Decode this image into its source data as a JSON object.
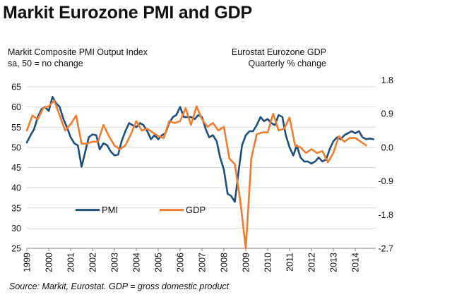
{
  "chart_data": {
    "type": "line",
    "title": "Markit Eurozone PMI and GDP",
    "left_axis_label": [
      "Markit Composite PMI Output Index",
      "sa, 50 = no change"
    ],
    "right_axis_label": [
      "Eurostat Eurozone GDP",
      "Quarterly % change"
    ],
    "source": "Source: Markit, Eurostat. GDP = gross domestic product",
    "left_ylim": [
      25,
      65
    ],
    "left_yticks": [
      "65",
      "60",
      "55",
      "50",
      "45",
      "40",
      "35",
      "30",
      "25"
    ],
    "right_ylim": [
      -2.7,
      1.8
    ],
    "right_yticks": [
      "1.8",
      "0.9",
      "0.0",
      "-0.9",
      "-1.8",
      "-2.7"
    ],
    "xlim": [
      1999,
      2015.0
    ],
    "xticks": [
      "1999",
      "2000",
      "2001",
      "2002",
      "2003",
      "2004",
      "2005",
      "2006",
      "2007",
      "2008",
      "2009",
      "2010",
      "2011",
      "2012",
      "2013",
      "2014"
    ],
    "grid": true,
    "legend": [
      {
        "name": "PMI",
        "color": "#1f4e79"
      },
      {
        "name": "GDP",
        "color": "#ed7d31"
      }
    ],
    "legend_position": "lower-left-center",
    "series": [
      {
        "name": "PMI",
        "axis": "left",
        "color": "#1f4e79",
        "x": [
          1999.0,
          1999.17,
          1999.33,
          1999.5,
          1999.67,
          1999.83,
          2000.0,
          2000.17,
          2000.33,
          2000.5,
          2000.67,
          2000.83,
          2001.0,
          2001.17,
          2001.33,
          2001.5,
          2001.67,
          2001.83,
          2002.0,
          2002.17,
          2002.33,
          2002.5,
          2002.67,
          2002.83,
          2003.0,
          2003.17,
          2003.33,
          2003.5,
          2003.67,
          2003.83,
          2004.0,
          2004.17,
          2004.33,
          2004.5,
          2004.67,
          2004.83,
          2005.0,
          2005.17,
          2005.33,
          2005.5,
          2005.67,
          2005.83,
          2006.0,
          2006.17,
          2006.33,
          2006.5,
          2006.67,
          2006.83,
          2007.0,
          2007.17,
          2007.33,
          2007.5,
          2007.67,
          2007.83,
          2008.0,
          2008.17,
          2008.33,
          2008.5,
          2008.67,
          2008.83,
          2009.0,
          2009.17,
          2009.33,
          2009.5,
          2009.67,
          2009.83,
          2010.0,
          2010.17,
          2010.33,
          2010.5,
          2010.67,
          2010.83,
          2011.0,
          2011.17,
          2011.33,
          2011.5,
          2011.67,
          2011.83,
          2012.0,
          2012.17,
          2012.33,
          2012.5,
          2012.67,
          2012.83,
          2013.0,
          2013.17,
          2013.33,
          2013.5,
          2013.67,
          2013.83,
          2014.0,
          2014.17,
          2014.33,
          2014.5,
          2014.67,
          2014.83
        ],
        "values": [
          51.2,
          53.0,
          54.5,
          57.5,
          59.5,
          60.0,
          59.0,
          62.5,
          61.0,
          60.0,
          57.0,
          55.0,
          52.5,
          51.0,
          50.5,
          45.2,
          49.0,
          52.5,
          53.2,
          53.0,
          49.5,
          51.0,
          50.5,
          49.0,
          48.0,
          48.2,
          51.5,
          54.0,
          56.0,
          55.5,
          55.0,
          56.0,
          55.5,
          54.0,
          52.0,
          53.0,
          52.0,
          53.0,
          53.5,
          56.0,
          57.5,
          58.0,
          60.0,
          57.5,
          57.5,
          57.5,
          57.0,
          58.0,
          57.5,
          54.5,
          52.5,
          53.0,
          51.5,
          47.5,
          44.5,
          38.5,
          38.0,
          36.5,
          44.0,
          50.5,
          53.0,
          54.0,
          54.0,
          55.5,
          57.5,
          56.5,
          57.0,
          56.0,
          55.5,
          58.0,
          57.5,
          53.0,
          50.0,
          48.0,
          50.5,
          47.5,
          46.5,
          46.5,
          46.0,
          46.5,
          47.5,
          46.5,
          47.0,
          49.5,
          51.5,
          52.5,
          52.0,
          53.0,
          53.5,
          54.0,
          53.5,
          54.0,
          52.5,
          52.0,
          52.2,
          52.0
        ]
      },
      {
        "name": "GDP",
        "axis": "right",
        "color": "#ed7d31",
        "x": [
          1999.0,
          1999.25,
          1999.5,
          1999.75,
          2000.0,
          2000.25,
          2000.5,
          2000.75,
          2001.0,
          2001.25,
          2001.5,
          2001.75,
          2002.0,
          2002.25,
          2002.5,
          2002.75,
          2003.0,
          2003.25,
          2003.5,
          2003.75,
          2004.0,
          2004.25,
          2004.5,
          2004.75,
          2005.0,
          2005.25,
          2005.5,
          2005.75,
          2006.0,
          2006.25,
          2006.5,
          2006.75,
          2007.0,
          2007.25,
          2007.5,
          2007.75,
          2008.0,
          2008.25,
          2008.5,
          2008.75,
          2009.0,
          2009.25,
          2009.5,
          2009.75,
          2010.0,
          2010.25,
          2010.5,
          2010.75,
          2011.0,
          2011.25,
          2011.5,
          2011.75,
          2012.0,
          2012.25,
          2012.5,
          2012.75,
          2013.0,
          2013.25,
          2013.5,
          2013.75,
          2014.0,
          2014.25,
          2014.5
        ],
        "values": [
          0.45,
          0.85,
          0.75,
          1.05,
          1.1,
          1.25,
          0.85,
          0.45,
          0.62,
          0.85,
          0.1,
          0.1,
          0.15,
          0.15,
          0.6,
          0.3,
          0.05,
          -0.05,
          0.05,
          0.35,
          0.7,
          0.45,
          0.5,
          0.4,
          0.3,
          0.25,
          0.7,
          0.65,
          0.7,
          1.05,
          0.6,
          1.1,
          0.75,
          0.55,
          0.65,
          0.45,
          0.55,
          -0.3,
          -0.45,
          -1.45,
          -2.7,
          -0.3,
          0.35,
          0.4,
          0.4,
          0.9,
          0.45,
          0.5,
          0.8,
          0.05,
          0.0,
          -0.15,
          -0.05,
          -0.15,
          -0.1,
          -0.4,
          -0.15,
          0.3,
          0.15,
          0.25,
          0.25,
          0.15,
          0.05
        ]
      }
    ]
  }
}
